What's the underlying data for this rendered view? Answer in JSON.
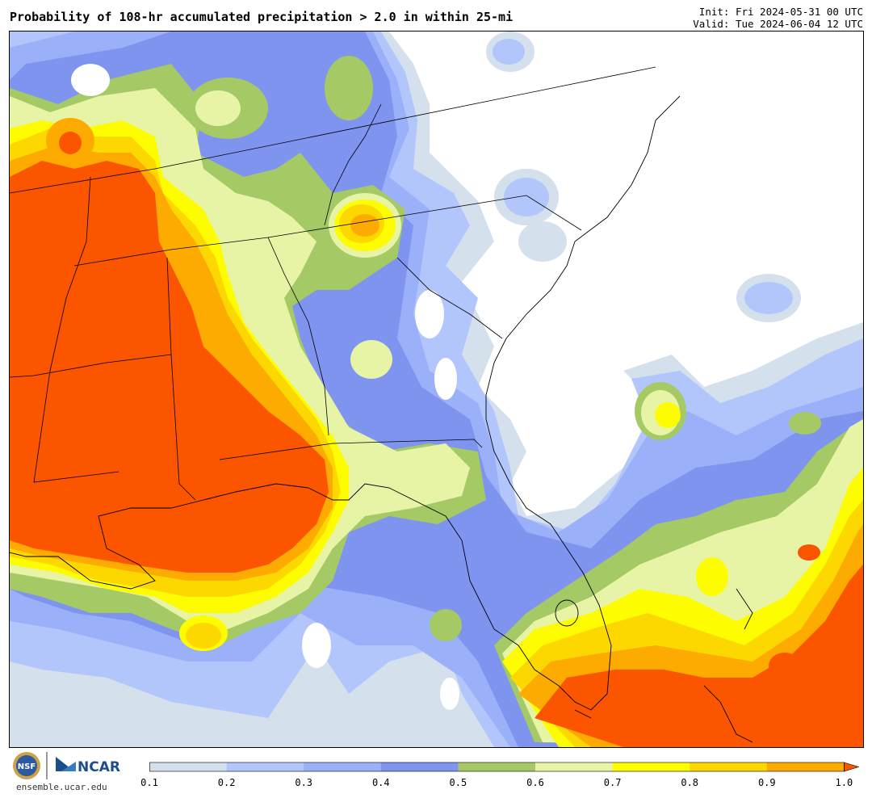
{
  "header": {
    "title": "Probability of 108-hr accumulated precipitation > 2.0 in within 25-mi",
    "init": "Init: Fri 2024-05-31 00 UTC",
    "valid": "Valid: Tue 2024-06-04 12 UTC"
  },
  "footer": {
    "url": "ensemble.ucar.edu",
    "logos": {
      "nsf": "NSF",
      "ncar": "NCAR"
    }
  },
  "colorbar": {
    "ticks": [
      "0.1",
      "0.2",
      "0.3",
      "0.4",
      "0.5",
      "0.6",
      "0.7",
      "0.8",
      "0.9",
      "1.0"
    ],
    "colors": [
      "#d4e0ec",
      "#b3c6fb",
      "#9ab0f9",
      "#7f94ef",
      "#a5c965",
      "#e7f4a6",
      "#fdfd00",
      "#fdd800",
      "#fdab00",
      "#fc5500"
    ]
  },
  "map": {
    "levels": [
      {
        "min": 0.1,
        "color": "#d4e0ec"
      },
      {
        "min": 0.2,
        "color": "#b3c6fb"
      },
      {
        "min": 0.3,
        "color": "#9ab0f9"
      },
      {
        "min": 0.4,
        "color": "#7f94ef"
      },
      {
        "min": 0.5,
        "color": "#a5c965"
      },
      {
        "min": 0.6,
        "color": "#e7f4a6"
      },
      {
        "min": 0.7,
        "color": "#fdfd00"
      },
      {
        "min": 0.8,
        "color": "#fdd800"
      },
      {
        "min": 0.9,
        "color": "#fdab00"
      },
      {
        "min": 1.0,
        "color": "#fc5500"
      }
    ]
  }
}
